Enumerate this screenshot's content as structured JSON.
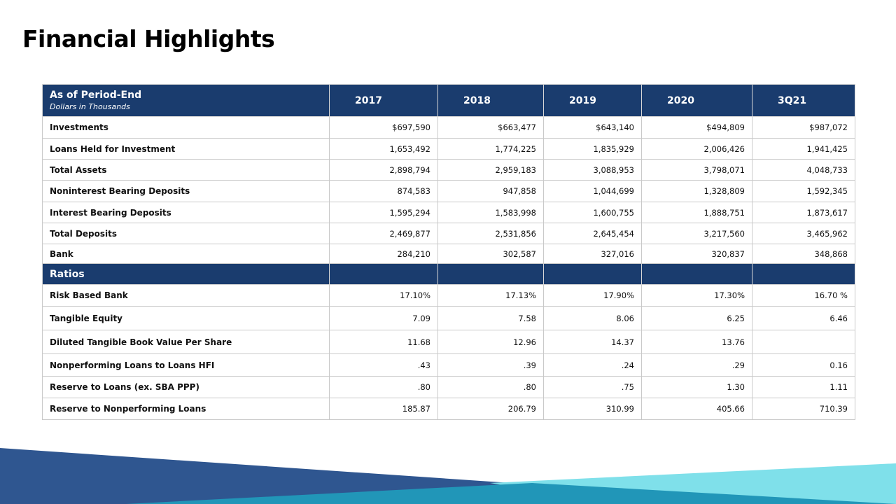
{
  "title": "Financial Highlights",
  "table": {
    "header": {
      "label": "As of Period-End",
      "sublabel": "Dollars in Thousands",
      "years": [
        "2017",
        "2018",
        "2019",
        "2020",
        "3Q21"
      ]
    },
    "balance_rows": [
      {
        "label": "Investments",
        "values": [
          "$697,590",
          "$663,477",
          "$643,140",
          "$494,809",
          "$987,072"
        ]
      },
      {
        "label": "Loans Held for Investment",
        "values": [
          "1,653,492",
          "1,774,225",
          "1,835,929",
          "2,006,426",
          "1,941,425"
        ]
      },
      {
        "label": "Total Assets",
        "values": [
          "2,898,794",
          "2,959,183",
          "3,088,953",
          "3,798,071",
          "4,048,733"
        ]
      },
      {
        "label": "Noninterest Bearing Deposits",
        "values": [
          "874,583",
          "947,858",
          "1,044,699",
          "1,328,809",
          "1,592,345"
        ]
      },
      {
        "label": "Interest Bearing Deposits",
        "values": [
          "1,595,294",
          "1,583,998",
          "1,600,755",
          "1,888,751",
          "1,873,617"
        ]
      },
      {
        "label": "Total Deposits",
        "values": [
          "2,469,877",
          "2,531,856",
          "2,645,454",
          "3,217,560",
          "3,465,962"
        ]
      },
      {
        "label": "Bank",
        "values": [
          "284,210",
          "302,587",
          "327,016",
          "320,837",
          "348,868"
        ]
      }
    ],
    "ratios_label": "Ratios",
    "ratio_rows": [
      {
        "label": "Risk Based Bank",
        "values": [
          "17.10%",
          "17.13%",
          "17.90%",
          "17.30%",
          "16.70 %"
        ]
      },
      {
        "label": "Tangible Equity",
        "values": [
          "7.09",
          "7.58",
          "8.06",
          "6.25",
          "6.46"
        ]
      },
      {
        "label": "Diluted Tangible Book Value Per Share",
        "values": [
          "11.68",
          "12.96",
          "14.37",
          "13.76",
          ""
        ]
      },
      {
        "label": "Nonperforming  Loans to Loans HFI",
        "values": [
          ".43",
          ".39",
          ".24",
          ".29",
          "0.16"
        ]
      },
      {
        "label": "Reserve to Loans (ex. SBA PPP)",
        "values": [
          ".80",
          ".80",
          ".75",
          "1.30",
          "1.11"
        ]
      },
      {
        "label": "Reserve to Nonperforming  Loans",
        "values": [
          "185.87",
          "206.79",
          "310.99",
          "405.66",
          "710.39"
        ]
      }
    ]
  },
  "colors": {
    "header_navy": "#1a3c6e",
    "wave_dark": "#2f5690",
    "wave_teal": "#2196b8",
    "wave_light": "#7fe0ea"
  }
}
